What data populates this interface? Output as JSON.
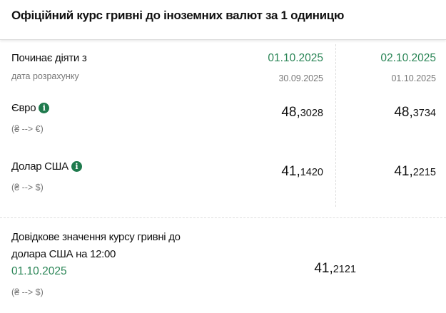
{
  "header": {
    "title": "Офіційний курс гривні до іноземних валют за 1 одиницю"
  },
  "columns": [
    {
      "effective_date": "01.10.2025",
      "calc_date": "30.09.2025"
    },
    {
      "effective_date": "02.10.2025",
      "calc_date": "01.10.2025"
    }
  ],
  "labels": {
    "effective": "Починає діяти з",
    "calc": "дата розрахунку"
  },
  "currencies": [
    {
      "name": "Євро",
      "conversion": "(₴ --> €)",
      "rates": [
        {
          "int": "48,",
          "dec": "3028"
        },
        {
          "int": "48,",
          "dec": "3734"
        }
      ]
    },
    {
      "name": "Долар США",
      "conversion": "(₴ --> $)",
      "rates": [
        {
          "int": "41,",
          "dec": "1420"
        },
        {
          "int": "41,",
          "dec": "2215"
        }
      ]
    }
  ],
  "reference": {
    "line1": "Довідкове значення курсу гривні до",
    "line2": "долара США на 12:00",
    "date": "01.10.2025",
    "conversion": "(₴ --> $)",
    "rate": {
      "int": "41,",
      "dec": "2121"
    }
  },
  "colors": {
    "accent": "#2a8556",
    "info_icon": "#1f7a4d"
  },
  "icons": {
    "info": "info-icon"
  }
}
